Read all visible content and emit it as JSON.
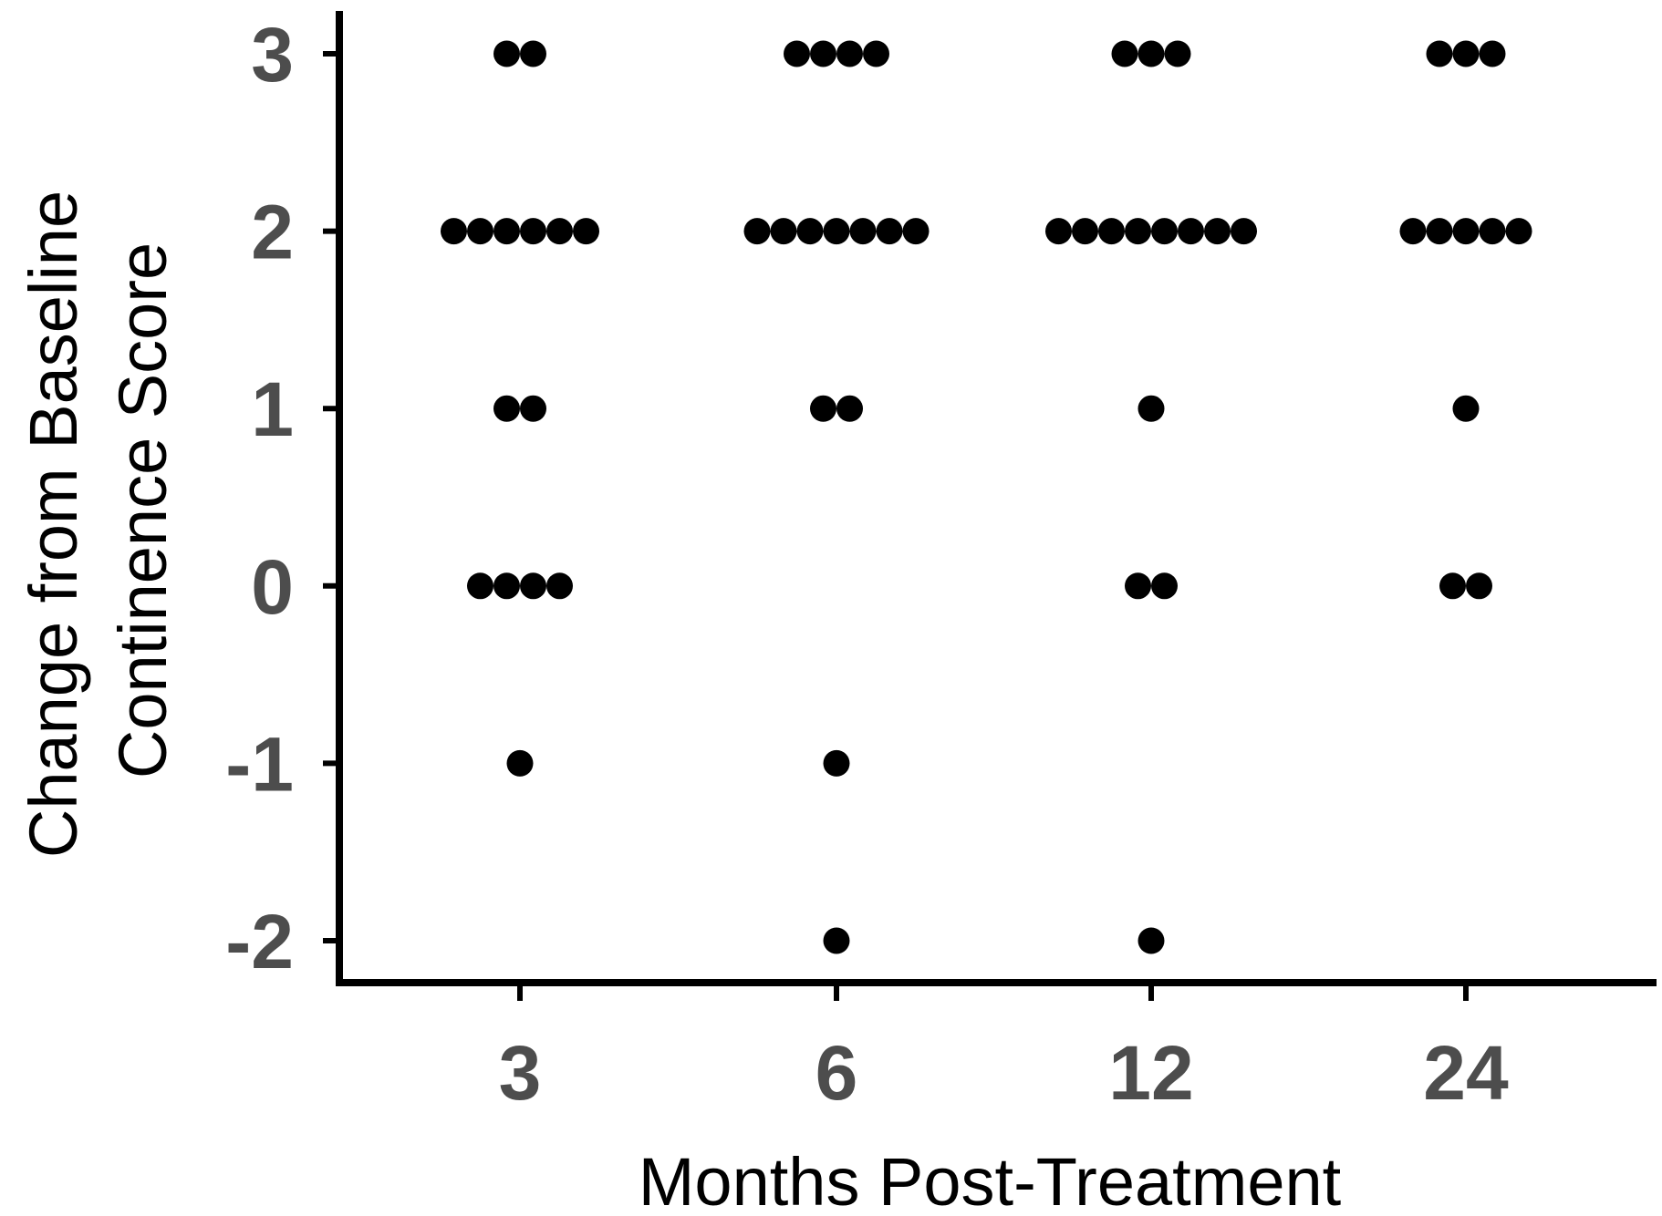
{
  "chart_data": {
    "type": "scatter",
    "subtype": "dotplot",
    "title": "",
    "xlabel": "Months Post-Treatment",
    "ylabel_lines": [
      "Change from Baseline",
      "Continence Score"
    ],
    "categories": [
      "3",
      "6",
      "12",
      "24"
    ],
    "y_ticks": [
      "-2",
      "-1",
      "0",
      "1",
      "2",
      "3"
    ],
    "ylim": [
      -2,
      3
    ],
    "grid": false,
    "legend": "none",
    "point_color": "#000000",
    "axis_color": "#000000",
    "tick_label_color": "#4d4d4d",
    "counts": [
      {
        "category": "3",
        "values": [
          {
            "y": 3,
            "n": 2
          },
          {
            "y": 2,
            "n": 6
          },
          {
            "y": 1,
            "n": 2
          },
          {
            "y": 0,
            "n": 4
          },
          {
            "y": -1,
            "n": 1
          }
        ]
      },
      {
        "category": "6",
        "values": [
          {
            "y": 3,
            "n": 4
          },
          {
            "y": 2,
            "n": 7
          },
          {
            "y": 1,
            "n": 2
          },
          {
            "y": -1,
            "n": 1
          },
          {
            "y": -2,
            "n": 1
          }
        ]
      },
      {
        "category": "12",
        "values": [
          {
            "y": 3,
            "n": 3
          },
          {
            "y": 2,
            "n": 8
          },
          {
            "y": 1,
            "n": 1
          },
          {
            "y": 0,
            "n": 2
          },
          {
            "y": -2,
            "n": 1
          }
        ]
      },
      {
        "category": "24",
        "values": [
          {
            "y": 3,
            "n": 3
          },
          {
            "y": 2,
            "n": 5
          },
          {
            "y": 1,
            "n": 1
          },
          {
            "y": 0,
            "n": 2
          }
        ]
      }
    ]
  }
}
